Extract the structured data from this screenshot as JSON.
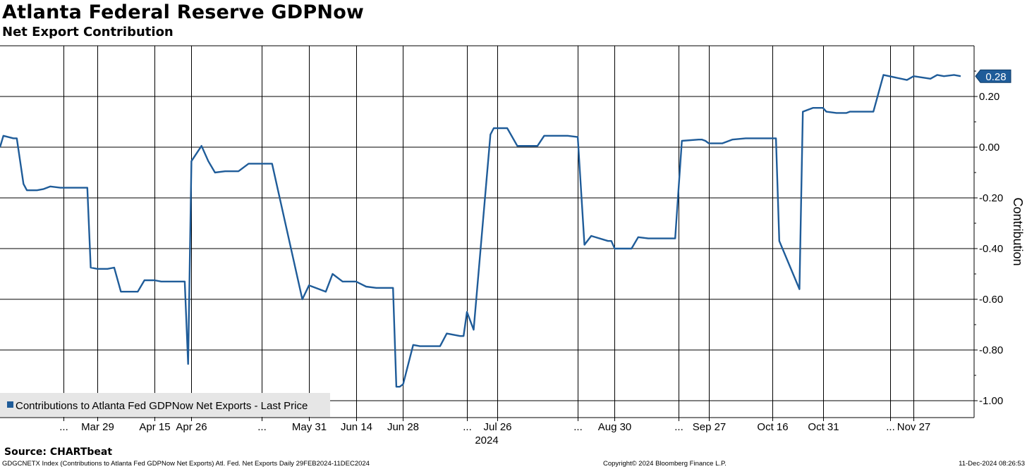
{
  "header": {
    "title": "Atlanta Federal Reserve GDPNow",
    "subtitle": "Net Export Contribution"
  },
  "footer": {
    "source": "Source: CHARTbeat",
    "description": "GDGCNETX Index (Contributions to Atlanta Fed GDPNow Net Exports) Atl. Fed. Net Exports  Daily 29FEB2024-11DEC2024",
    "copyright": "Copyright© 2024 Bloomberg Finance L.P.",
    "timestamp": "11-Dec-2024 08:26:53"
  },
  "colors": {
    "series": "#1f5c99",
    "grid": "#000000",
    "legend_bg": "#e6e6e6",
    "last_value_bg": "#1f5c99"
  },
  "chart_data": {
    "type": "line",
    "ylabel": "Contribution",
    "ylim": [
      -1.05,
      0.4
    ],
    "yticks": [
      0.2,
      0.0,
      -0.2,
      -0.4,
      -0.6,
      -0.8,
      -1.0
    ],
    "ytick_labels": [
      "0.20",
      "0.00",
      "-0.20",
      "-0.40",
      "-0.60",
      "-0.80",
      "-1.00"
    ],
    "xlim": [
      "2024-02-29",
      "2024-12-11"
    ],
    "xticks": [
      {
        "label": "...",
        "date": "2024-03-19"
      },
      {
        "label": "Mar 29",
        "date": "2024-03-29"
      },
      {
        "label": "Apr 15",
        "date": "2024-04-15"
      },
      {
        "label": "Apr 26",
        "date": "2024-04-26"
      },
      {
        "label": "...",
        "date": "2024-05-17"
      },
      {
        "label": "May 31",
        "date": "2024-05-31"
      },
      {
        "label": "Jun 14",
        "date": "2024-06-14"
      },
      {
        "label": "Jun 28",
        "date": "2024-06-28"
      },
      {
        "label": "...",
        "date": "2024-07-17"
      },
      {
        "label": "Jul 26",
        "date": "2024-07-26"
      },
      {
        "label": "...",
        "date": "2024-08-19"
      },
      {
        "label": "Aug 30",
        "date": "2024-08-30"
      },
      {
        "label": "...",
        "date": "2024-09-18"
      },
      {
        "label": "Sep 27",
        "date": "2024-09-27"
      },
      {
        "label": "Oct 16",
        "date": "2024-10-16"
      },
      {
        "label": "Oct 31",
        "date": "2024-10-31"
      },
      {
        "label": "...",
        "date": "2024-11-20"
      },
      {
        "label": "Nov 27",
        "date": "2024-11-27"
      }
    ],
    "year_label": "2024",
    "grid": true,
    "legend_position": "bottom-left",
    "last_value_label": "0.28",
    "series": [
      {
        "name": "Contributions to Atlanta Fed GDPNow Net Exports - Last Price",
        "x": [
          "2024-02-29",
          "2024-03-01",
          "2024-03-04",
          "2024-03-05",
          "2024-03-07",
          "2024-03-08",
          "2024-03-11",
          "2024-03-13",
          "2024-03-15",
          "2024-03-18",
          "2024-03-21",
          "2024-03-26",
          "2024-03-27",
          "2024-03-29",
          "2024-04-01",
          "2024-04-03",
          "2024-04-05",
          "2024-04-08",
          "2024-04-10",
          "2024-04-12",
          "2024-04-15",
          "2024-04-17",
          "2024-04-19",
          "2024-04-24",
          "2024-04-25",
          "2024-04-26",
          "2024-04-29",
          "2024-05-01",
          "2024-05-03",
          "2024-05-06",
          "2024-05-08",
          "2024-05-10",
          "2024-05-13",
          "2024-05-16",
          "2024-05-20",
          "2024-05-29",
          "2024-05-31",
          "2024-06-03",
          "2024-06-05",
          "2024-06-07",
          "2024-06-10",
          "2024-06-12",
          "2024-06-14",
          "2024-06-17",
          "2024-06-20",
          "2024-06-25",
          "2024-06-26",
          "2024-06-27",
          "2024-06-28",
          "2024-07-01",
          "2024-07-03",
          "2024-07-09",
          "2024-07-11",
          "2024-07-15",
          "2024-07-16",
          "2024-07-17",
          "2024-07-19",
          "2024-07-24",
          "2024-07-25",
          "2024-07-26",
          "2024-07-29",
          "2024-08-01",
          "2024-08-02",
          "2024-08-05",
          "2024-08-07",
          "2024-08-09",
          "2024-08-15",
          "2024-08-16",
          "2024-08-19",
          "2024-08-21",
          "2024-08-23",
          "2024-08-28",
          "2024-08-29",
          "2024-08-30",
          "2024-09-03",
          "2024-09-04",
          "2024-09-06",
          "2024-09-09",
          "2024-09-11",
          "2024-09-17",
          "2024-09-19",
          "2024-09-24",
          "2024-09-25",
          "2024-09-26",
          "2024-09-27",
          "2024-09-30",
          "2024-10-01",
          "2024-10-04",
          "2024-10-08",
          "2024-10-09",
          "2024-10-15",
          "2024-10-17",
          "2024-10-18",
          "2024-10-24",
          "2024-10-25",
          "2024-10-28",
          "2024-10-31",
          "2024-11-01",
          "2024-11-04",
          "2024-11-05",
          "2024-11-07",
          "2024-11-08",
          "2024-11-14",
          "2024-11-15",
          "2024-11-18",
          "2024-11-25",
          "2024-11-27",
          "2024-12-02",
          "2024-12-04",
          "2024-12-06",
          "2024-12-09",
          "2024-12-11"
        ],
        "y": [
          0.0,
          0.045,
          0.035,
          0.035,
          -0.145,
          -0.17,
          -0.17,
          -0.165,
          -0.155,
          -0.16,
          -0.16,
          -0.16,
          -0.475,
          -0.48,
          -0.48,
          -0.475,
          -0.57,
          -0.57,
          -0.57,
          -0.525,
          -0.525,
          -0.53,
          -0.53,
          -0.53,
          -0.855,
          -0.055,
          0.005,
          -0.055,
          -0.1,
          -0.095,
          -0.095,
          -0.095,
          -0.065,
          -0.065,
          -0.065,
          -0.6,
          -0.545,
          -0.56,
          -0.57,
          -0.5,
          -0.53,
          -0.53,
          -0.53,
          -0.55,
          -0.555,
          -0.555,
          -0.945,
          -0.945,
          -0.935,
          -0.78,
          -0.785,
          -0.785,
          -0.735,
          -0.745,
          -0.745,
          -0.65,
          -0.72,
          0.05,
          0.075,
          0.075,
          0.075,
          0.005,
          0.005,
          0.005,
          0.005,
          0.045,
          0.045,
          0.045,
          0.04,
          -0.385,
          -0.35,
          -0.37,
          -0.37,
          -0.4,
          -0.4,
          -0.4,
          -0.355,
          -0.36,
          -0.36,
          -0.36,
          0.025,
          0.03,
          0.03,
          0.025,
          0.015,
          0.015,
          0.015,
          0.03,
          0.035,
          0.035,
          0.035,
          0.035,
          -0.37,
          -0.56,
          0.14,
          0.155,
          0.155,
          0.14,
          0.135,
          0.135,
          0.135,
          0.14,
          0.14,
          0.14,
          0.285,
          0.265,
          0.28,
          0.27,
          0.285,
          0.28,
          0.285,
          0.28
        ]
      }
    ]
  }
}
